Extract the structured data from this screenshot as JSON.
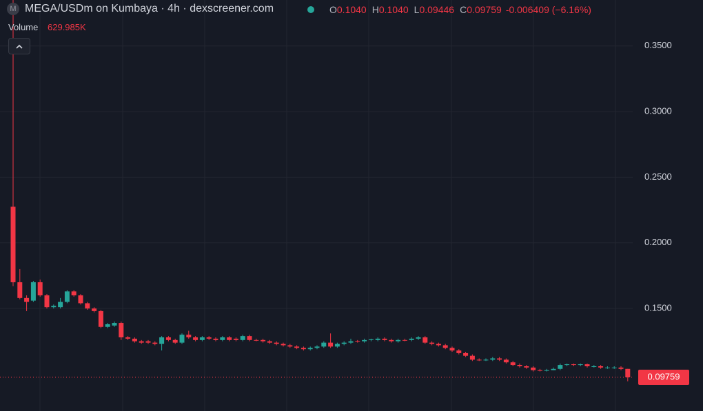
{
  "header": {
    "logo": "M",
    "symbol": "MEGA/USDm on Kumbaya · 4h · dexscreener.com",
    "ohlc": [
      {
        "key": "O",
        "value": "0.1040"
      },
      {
        "key": "H",
        "value": "0.1040"
      },
      {
        "key": "L",
        "value": "0.09446"
      },
      {
        "key": "C",
        "value": "0.09759"
      }
    ],
    "change": "-0.006409 (−6.16%)",
    "volume_label": "Volume",
    "volume_value": "629.985K"
  },
  "chart_data": {
    "type": "candlestick",
    "ylim": [
      0.0719,
      0.385
    ],
    "yticks": [
      {
        "value": 0.15,
        "label": "0.1500"
      },
      {
        "value": 0.2,
        "label": "0.2000"
      },
      {
        "value": 0.25,
        "label": "0.2500"
      },
      {
        "value": 0.3,
        "label": "0.3000"
      },
      {
        "value": 0.35,
        "label": "0.3500"
      }
    ],
    "grid": true,
    "up_color": "#26a69a",
    "down_color": "#f23645",
    "open": [
      0.2275,
      0.17,
      0.158,
      0.156,
      0.17,
      0.16,
      0.151,
      0.151,
      0.155,
      0.163,
      0.16,
      0.154,
      0.15,
      0.148,
      0.136,
      0.137,
      0.139,
      0.128,
      0.127,
      0.125,
      0.125,
      0.124,
      0.123,
      0.128,
      0.126,
      0.124,
      0.13,
      0.128,
      0.126,
      0.128,
      0.127,
      0.126,
      0.128,
      0.127,
      0.126,
      0.129,
      0.126,
      0.126,
      0.125,
      0.124,
      0.123,
      0.122,
      0.121,
      0.12,
      0.119,
      0.12,
      0.121,
      0.124,
      0.121,
      0.123,
      0.124,
      0.125,
      0.125,
      0.126,
      0.126,
      0.127,
      0.126,
      0.125,
      0.126,
      0.126,
      0.127,
      0.128,
      0.124,
      0.123,
      0.122,
      0.12,
      0.118,
      0.116,
      0.114,
      0.111,
      0.1105,
      0.111,
      0.112,
      0.111,
      0.109,
      0.107,
      0.106,
      0.105,
      0.103,
      0.1025,
      0.103,
      0.104,
      0.107,
      0.1075,
      0.107,
      0.1075,
      0.106,
      0.106,
      0.105,
      0.105,
      0.105,
      0.104
    ],
    "high": [
      0.385,
      0.18,
      0.16,
      0.171,
      0.172,
      0.161,
      0.153,
      0.158,
      0.164,
      0.164,
      0.161,
      0.155,
      0.151,
      0.149,
      0.139,
      0.14,
      0.14,
      0.129,
      0.128,
      0.126,
      0.126,
      0.125,
      0.129,
      0.129,
      0.127,
      0.131,
      0.133,
      0.129,
      0.129,
      0.129,
      0.128,
      0.129,
      0.129,
      0.128,
      0.13,
      0.13,
      0.127,
      0.127,
      0.126,
      0.125,
      0.124,
      0.123,
      0.122,
      0.121,
      0.121,
      0.122,
      0.125,
      0.131,
      0.124,
      0.125,
      0.127,
      0.126,
      0.127,
      0.127,
      0.128,
      0.128,
      0.127,
      0.127,
      0.127,
      0.128,
      0.129,
      0.129,
      0.125,
      0.124,
      0.123,
      0.121,
      0.119,
      0.117,
      0.115,
      0.112,
      0.112,
      0.113,
      0.113,
      0.112,
      0.11,
      0.108,
      0.107,
      0.106,
      0.104,
      0.104,
      0.105,
      0.108,
      0.108,
      0.108,
      0.108,
      0.108,
      0.107,
      0.107,
      0.106,
      0.106,
      0.106,
      0.104
    ],
    "low": [
      0.167,
      0.157,
      0.148,
      0.155,
      0.159,
      0.15,
      0.15,
      0.15,
      0.154,
      0.159,
      0.153,
      0.149,
      0.147,
      0.135,
      0.135,
      0.136,
      0.126,
      0.126,
      0.124,
      0.123,
      0.123,
      0.122,
      0.118,
      0.125,
      0.123,
      0.123,
      0.127,
      0.125,
      0.125,
      0.126,
      0.125,
      0.125,
      0.125,
      0.125,
      0.125,
      0.125,
      0.125,
      0.124,
      0.123,
      0.122,
      0.121,
      0.12,
      0.119,
      0.118,
      0.118,
      0.119,
      0.12,
      0.12,
      0.12,
      0.122,
      0.123,
      0.124,
      0.124,
      0.125,
      0.125,
      0.125,
      0.124,
      0.124,
      0.125,
      0.125,
      0.126,
      0.123,
      0.122,
      0.121,
      0.119,
      0.117,
      0.115,
      0.113,
      0.11,
      0.11,
      0.11,
      0.11,
      0.11,
      0.108,
      0.106,
      0.105,
      0.104,
      0.102,
      0.102,
      0.102,
      0.103,
      0.103,
      0.106,
      0.106,
      0.106,
      0.105,
      0.105,
      0.104,
      0.104,
      0.104,
      0.103,
      0.09446
    ],
    "close": [
      0.17,
      0.158,
      0.155,
      0.17,
      0.16,
      0.151,
      0.152,
      0.155,
      0.163,
      0.16,
      0.154,
      0.15,
      0.148,
      0.136,
      0.138,
      0.139,
      0.128,
      0.127,
      0.125,
      0.124,
      0.124,
      0.123,
      0.128,
      0.126,
      0.124,
      0.13,
      0.128,
      0.126,
      0.128,
      0.127,
      0.126,
      0.128,
      0.126,
      0.126,
      0.129,
      0.126,
      0.1255,
      0.125,
      0.124,
      0.123,
      0.122,
      0.121,
      0.12,
      0.119,
      0.12,
      0.121,
      0.124,
      0.121,
      0.123,
      0.124,
      0.125,
      0.1245,
      0.126,
      0.1265,
      0.127,
      0.126,
      0.125,
      0.126,
      0.1255,
      0.127,
      0.128,
      0.124,
      0.123,
      0.122,
      0.12,
      0.118,
      0.116,
      0.114,
      0.111,
      0.1105,
      0.111,
      0.112,
      0.111,
      0.109,
      0.107,
      0.106,
      0.105,
      0.103,
      0.1025,
      0.103,
      0.104,
      0.107,
      0.1075,
      0.107,
      0.1075,
      0.106,
      0.106,
      0.105,
      0.105,
      0.105,
      0.104,
      0.09759
    ]
  }
}
